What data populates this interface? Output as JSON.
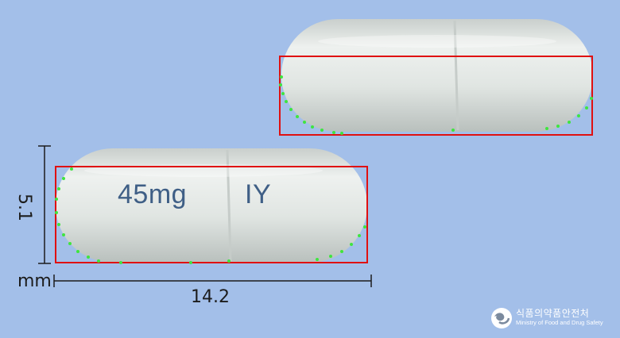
{
  "capsule_front": {
    "imprint_strength": "45mg",
    "imprint_code": "IY"
  },
  "dimensions": {
    "width_mm": "5.1",
    "unit": "mm",
    "length": "14.2"
  },
  "logo": {
    "korean": "식품의약품안전처",
    "english": "Ministry of Food and Drug Safety"
  },
  "colors": {
    "background": "#a3bfe9",
    "capsule": "#e1e6e3",
    "bounding_box": "#e01010",
    "edge_points": "#3fe53f",
    "imprint": "#3f5f86"
  }
}
